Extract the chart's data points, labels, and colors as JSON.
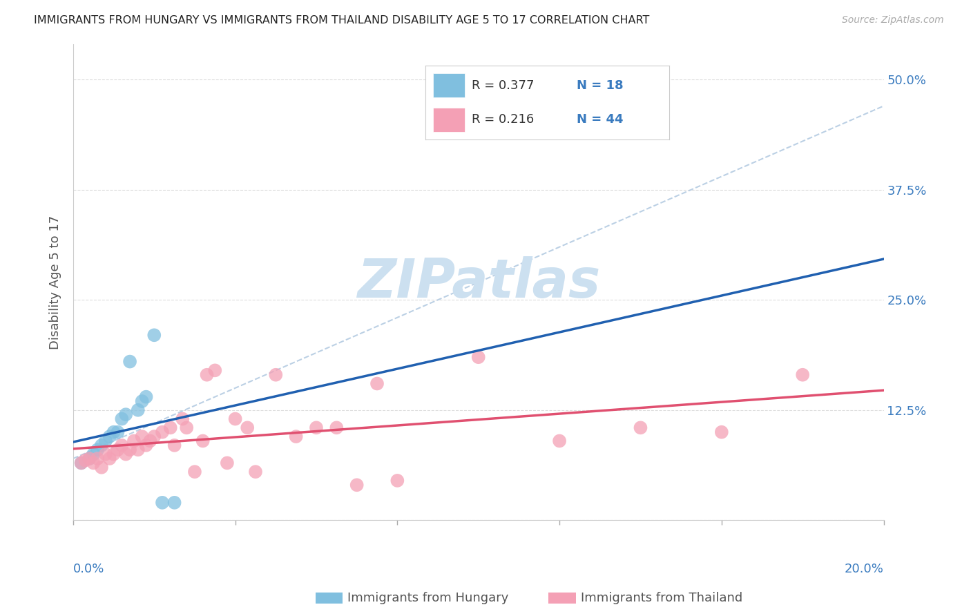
{
  "title": "IMMIGRANTS FROM HUNGARY VS IMMIGRANTS FROM THAILAND DISABILITY AGE 5 TO 17 CORRELATION CHART",
  "source": "Source: ZipAtlas.com",
  "ylabel": "Disability Age 5 to 17",
  "ytick_values": [
    0.0,
    0.125,
    0.25,
    0.375,
    0.5
  ],
  "xlim": [
    0.0,
    0.2
  ],
  "ylim": [
    0.0,
    0.54
  ],
  "legend_r1": "0.377",
  "legend_n1": "18",
  "legend_r2": "0.216",
  "legend_n2": "44",
  "color_hungary": "#80bfdf",
  "color_thailand": "#f4a0b5",
  "trendline_hungary_color": "#2060b0",
  "trendline_thailand_color": "#e05070",
  "dashed_color": "#b0c8e0",
  "watermark_color": "#cce0f0",
  "background_color": "#ffffff",
  "hungary_x": [
    0.002,
    0.004,
    0.005,
    0.006,
    0.007,
    0.008,
    0.009,
    0.01,
    0.011,
    0.012,
    0.013,
    0.014,
    0.016,
    0.017,
    0.018,
    0.02,
    0.022,
    0.025
  ],
  "hungary_y": [
    0.065,
    0.07,
    0.075,
    0.08,
    0.085,
    0.09,
    0.095,
    0.1,
    0.1,
    0.115,
    0.12,
    0.18,
    0.125,
    0.135,
    0.14,
    0.21,
    0.02,
    0.02
  ],
  "thailand_x": [
    0.002,
    0.003,
    0.004,
    0.005,
    0.006,
    0.007,
    0.008,
    0.009,
    0.01,
    0.011,
    0.012,
    0.013,
    0.014,
    0.015,
    0.016,
    0.017,
    0.018,
    0.019,
    0.02,
    0.022,
    0.024,
    0.025,
    0.027,
    0.028,
    0.03,
    0.032,
    0.033,
    0.035,
    0.038,
    0.04,
    0.043,
    0.045,
    0.05,
    0.055,
    0.06,
    0.065,
    0.07,
    0.075,
    0.08,
    0.1,
    0.12,
    0.14,
    0.16,
    0.18
  ],
  "thailand_y": [
    0.065,
    0.068,
    0.07,
    0.065,
    0.07,
    0.06,
    0.075,
    0.07,
    0.075,
    0.08,
    0.085,
    0.075,
    0.08,
    0.09,
    0.08,
    0.095,
    0.085,
    0.09,
    0.095,
    0.1,
    0.105,
    0.085,
    0.115,
    0.105,
    0.055,
    0.09,
    0.165,
    0.17,
    0.065,
    0.115,
    0.105,
    0.055,
    0.165,
    0.095,
    0.105,
    0.105,
    0.04,
    0.155,
    0.045,
    0.185,
    0.09,
    0.105,
    0.1,
    0.165
  ]
}
